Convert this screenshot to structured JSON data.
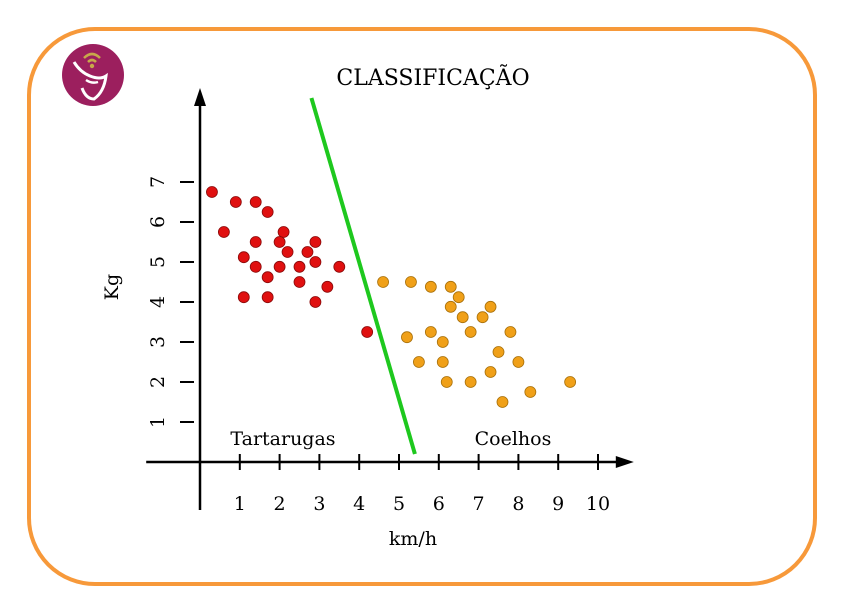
{
  "chart_data": {
    "type": "scatter",
    "title": "CLASSIFICAÇÃO",
    "xlabel": "km/h",
    "ylabel": "Kg",
    "xlim": [
      -1,
      11
    ],
    "ylim": [
      -1.2,
      9.2
    ],
    "x_ticks": [
      1,
      2,
      3,
      4,
      5,
      6,
      7,
      8,
      9,
      10
    ],
    "y_ticks": [
      1,
      2,
      3,
      4,
      5,
      6,
      7
    ],
    "grid": false,
    "colors": {
      "red": "#e01010",
      "orange": "#f0a018",
      "line": "#1ec81e",
      "axis": "#000000",
      "frame": "#f7993a",
      "logo_bg": "#9c1f5e",
      "logo_fg": "#c8a84a"
    },
    "series": [
      {
        "color": "red",
        "points": [
          [
            0.3,
            6.75
          ],
          [
            0.9,
            6.5
          ],
          [
            1.4,
            6.5
          ],
          [
            1.7,
            6.25
          ],
          [
            0.6,
            5.75
          ],
          [
            2.1,
            5.75
          ],
          [
            1.4,
            5.5
          ],
          [
            2.0,
            5.5
          ],
          [
            2.9,
            5.5
          ],
          [
            2.2,
            5.25
          ],
          [
            2.7,
            5.25
          ],
          [
            1.1,
            5.12
          ],
          [
            1.4,
            4.88
          ],
          [
            2.0,
            4.88
          ],
          [
            2.5,
            4.88
          ],
          [
            2.9,
            5.0
          ],
          [
            3.5,
            4.88
          ],
          [
            1.7,
            4.62
          ],
          [
            2.5,
            4.5
          ],
          [
            3.2,
            4.38
          ],
          [
            1.1,
            4.12
          ],
          [
            1.7,
            4.12
          ],
          [
            2.9,
            4.0
          ],
          [
            4.2,
            3.25
          ]
        ]
      },
      {
        "color": "orange",
        "points": [
          [
            4.6,
            4.5
          ],
          [
            5.3,
            4.5
          ],
          [
            5.8,
            4.38
          ],
          [
            6.3,
            4.38
          ],
          [
            6.5,
            4.12
          ],
          [
            6.3,
            3.88
          ],
          [
            7.3,
            3.88
          ],
          [
            6.6,
            3.62
          ],
          [
            7.1,
            3.62
          ],
          [
            5.8,
            3.25
          ],
          [
            6.8,
            3.25
          ],
          [
            7.8,
            3.25
          ],
          [
            5.2,
            3.12
          ],
          [
            6.1,
            3.0
          ],
          [
            7.5,
            2.75
          ],
          [
            5.5,
            2.5
          ],
          [
            6.1,
            2.5
          ],
          [
            8.0,
            2.5
          ],
          [
            7.3,
            2.25
          ],
          [
            6.2,
            2.0
          ],
          [
            6.8,
            2.0
          ],
          [
            9.3,
            2.0
          ],
          [
            8.3,
            1.75
          ],
          [
            7.6,
            1.5
          ]
        ]
      }
    ],
    "decision_line": {
      "from": [
        2.8,
        9.1
      ],
      "to": [
        5.4,
        0.2
      ]
    },
    "annotations": [
      {
        "text": "Tartarugas",
        "x": 2.2,
        "y": 0.6
      },
      {
        "text": "Coelhos",
        "x": 8.2,
        "y": 0.6
      }
    ]
  }
}
